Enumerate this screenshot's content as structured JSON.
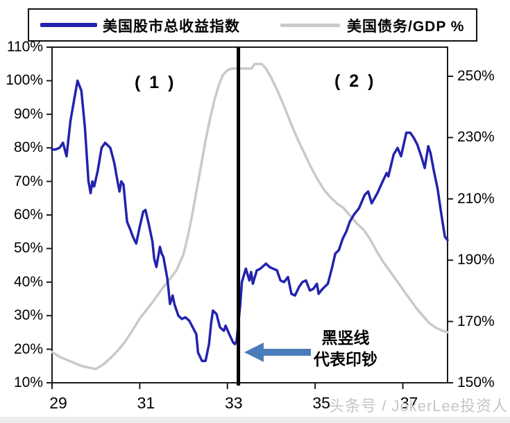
{
  "legend": {
    "series1": "美国股市总收益指数",
    "series2": "美国债务/GDP %"
  },
  "annotations": {
    "phase1": "( 1 )",
    "phase2": "( 2 )",
    "arrow_note_line1": "黑竖线",
    "arrow_note_line2": "代表印钞"
  },
  "watermark": "头条号 / JokerLee投资人",
  "colors": {
    "stocks_line": "#2322ad",
    "debt_line": "#c9c9c9",
    "event_line": "#000000",
    "arrow": "#4a7cba",
    "watermark_text": "#c6c6c6",
    "axis": "#1a1a1a"
  },
  "chart_data": {
    "type": "line",
    "title": "",
    "x_ticks": [
      "29",
      "31",
      "33",
      "35",
      "37"
    ],
    "x_tick_years": [
      29,
      31,
      33,
      35,
      37
    ],
    "x_range": [
      29,
      38.02
    ],
    "left_axis": {
      "tick_labels": [
        "110%",
        "100%",
        "90%",
        "80%",
        "70%",
        "60%",
        "50%",
        "40%",
        "30%",
        "20%",
        "10%"
      ],
      "tick_values": [
        110,
        100,
        90,
        80,
        70,
        60,
        50,
        40,
        30,
        20,
        10
      ],
      "range": [
        10,
        110
      ],
      "series_name": "美国股市总收益指数"
    },
    "right_axis": {
      "tick_labels": [
        "250%",
        "230%",
        "210%",
        "190%",
        "170%",
        "150%"
      ],
      "tick_values": [
        250,
        230,
        210,
        190,
        170,
        150
      ],
      "range": [
        150,
        259.5
      ],
      "series_name": "美国债务/GDP %"
    },
    "event_line_x": 33.25,
    "legend_position": "top",
    "grid": false,
    "series": [
      {
        "name": "美国债务/GDP %",
        "axis": "right",
        "points": [
          [
            29.0,
            160
          ],
          [
            29.17,
            158.5
          ],
          [
            29.33,
            157.5
          ],
          [
            29.5,
            156.5
          ],
          [
            29.67,
            155.5
          ],
          [
            29.83,
            155
          ],
          [
            30.0,
            154.5
          ],
          [
            30.17,
            156
          ],
          [
            30.33,
            158
          ],
          [
            30.5,
            160.5
          ],
          [
            30.67,
            163.5
          ],
          [
            30.83,
            167
          ],
          [
            31.0,
            171
          ],
          [
            31.17,
            174
          ],
          [
            31.33,
            177
          ],
          [
            31.5,
            180.5
          ],
          [
            31.67,
            183.5
          ],
          [
            31.83,
            186.5
          ],
          [
            32.0,
            192
          ],
          [
            32.1,
            198
          ],
          [
            32.2,
            205
          ],
          [
            32.3,
            213
          ],
          [
            32.4,
            221
          ],
          [
            32.5,
            229
          ],
          [
            32.6,
            236
          ],
          [
            32.7,
            242
          ],
          [
            32.8,
            247
          ],
          [
            32.9,
            250.5
          ],
          [
            33.0,
            252
          ],
          [
            33.1,
            252.5
          ],
          [
            33.3,
            252.5
          ],
          [
            33.55,
            252.5
          ],
          [
            33.62,
            254
          ],
          [
            33.78,
            254
          ],
          [
            33.88,
            252.5
          ],
          [
            34.0,
            249.5
          ],
          [
            34.15,
            245
          ],
          [
            34.3,
            240
          ],
          [
            34.45,
            234.5
          ],
          [
            34.6,
            229.5
          ],
          [
            34.75,
            225
          ],
          [
            34.9,
            220.5
          ],
          [
            35.05,
            216.5
          ],
          [
            35.2,
            213
          ],
          [
            35.35,
            210.5
          ],
          [
            35.5,
            208.5
          ],
          [
            35.65,
            207
          ],
          [
            35.8,
            204.5
          ],
          [
            35.95,
            202
          ],
          [
            36.1,
            200
          ],
          [
            36.25,
            197
          ],
          [
            36.4,
            193
          ],
          [
            36.55,
            189.5
          ],
          [
            36.7,
            186.5
          ],
          [
            36.85,
            183.5
          ],
          [
            37.0,
            180.5
          ],
          [
            37.15,
            177.5
          ],
          [
            37.3,
            174.5
          ],
          [
            37.45,
            172
          ],
          [
            37.6,
            169.5
          ],
          [
            37.75,
            168
          ],
          [
            37.9,
            167
          ],
          [
            38.02,
            166.5
          ]
        ]
      },
      {
        "name": "美国股市总收益指数",
        "axis": "left",
        "points": [
          [
            29.0,
            79.5
          ],
          [
            29.08,
            79.5
          ],
          [
            29.17,
            80
          ],
          [
            29.25,
            81.5
          ],
          [
            29.33,
            77.5
          ],
          [
            29.42,
            88
          ],
          [
            29.5,
            94
          ],
          [
            29.58,
            100
          ],
          [
            29.67,
            97
          ],
          [
            29.75,
            86
          ],
          [
            29.83,
            70
          ],
          [
            29.88,
            66.5
          ],
          [
            29.92,
            70
          ],
          [
            29.96,
            68.5
          ],
          [
            30.04,
            73
          ],
          [
            30.13,
            80
          ],
          [
            30.21,
            81.5
          ],
          [
            30.29,
            80.5
          ],
          [
            30.33,
            80
          ],
          [
            30.42,
            75.5
          ],
          [
            30.5,
            69.5
          ],
          [
            30.54,
            67
          ],
          [
            30.58,
            70
          ],
          [
            30.63,
            69
          ],
          [
            30.71,
            58
          ],
          [
            30.79,
            55.5
          ],
          [
            30.83,
            54
          ],
          [
            30.88,
            52.5
          ],
          [
            30.92,
            51.5
          ],
          [
            31.0,
            56.5
          ],
          [
            31.08,
            61
          ],
          [
            31.13,
            61.5
          ],
          [
            31.21,
            57
          ],
          [
            31.29,
            52
          ],
          [
            31.33,
            47
          ],
          [
            31.38,
            44.5
          ],
          [
            31.46,
            50.5
          ],
          [
            31.5,
            48.5
          ],
          [
            31.54,
            47.5
          ],
          [
            31.63,
            41
          ],
          [
            31.69,
            33.5
          ],
          [
            31.75,
            36
          ],
          [
            31.79,
            33.5
          ],
          [
            31.88,
            30
          ],
          [
            31.96,
            29
          ],
          [
            32.04,
            29.5
          ],
          [
            32.13,
            28.5
          ],
          [
            32.21,
            26.5
          ],
          [
            32.29,
            24.5
          ],
          [
            32.33,
            19
          ],
          [
            32.42,
            16.5
          ],
          [
            32.5,
            16.5
          ],
          [
            32.58,
            21.5
          ],
          [
            32.63,
            28
          ],
          [
            32.67,
            31.5
          ],
          [
            32.75,
            30.5
          ],
          [
            32.83,
            26.5
          ],
          [
            32.92,
            25.5
          ],
          [
            32.96,
            27
          ],
          [
            33.04,
            24.5
          ],
          [
            33.13,
            22
          ],
          [
            33.17,
            21.5
          ],
          [
            33.21,
            22.5
          ],
          [
            33.29,
            33
          ],
          [
            33.33,
            40
          ],
          [
            33.42,
            44
          ],
          [
            33.5,
            40.5
          ],
          [
            33.54,
            43
          ],
          [
            33.58,
            39.5
          ],
          [
            33.67,
            43.5
          ],
          [
            33.75,
            44
          ],
          [
            33.88,
            45.5
          ],
          [
            33.96,
            44.5
          ],
          [
            34.04,
            44
          ],
          [
            34.13,
            43.5
          ],
          [
            34.21,
            40.5
          ],
          [
            34.29,
            40
          ],
          [
            34.38,
            41.5
          ],
          [
            34.46,
            36.5
          ],
          [
            34.54,
            36
          ],
          [
            34.63,
            38.5
          ],
          [
            34.71,
            40
          ],
          [
            34.79,
            40.5
          ],
          [
            34.88,
            37.5
          ],
          [
            34.96,
            38
          ],
          [
            35.04,
            39.5
          ],
          [
            35.08,
            36.5
          ],
          [
            35.17,
            38
          ],
          [
            35.29,
            39.5
          ],
          [
            35.38,
            44
          ],
          [
            35.46,
            48.5
          ],
          [
            35.54,
            49.5
          ],
          [
            35.63,
            53
          ],
          [
            35.71,
            55
          ],
          [
            35.79,
            58
          ],
          [
            35.88,
            60
          ],
          [
            36.0,
            62
          ],
          [
            36.13,
            66
          ],
          [
            36.21,
            67
          ],
          [
            36.29,
            63.5
          ],
          [
            36.42,
            66.5
          ],
          [
            36.54,
            70
          ],
          [
            36.63,
            72.5
          ],
          [
            36.67,
            71.5
          ],
          [
            36.79,
            78
          ],
          [
            36.88,
            80
          ],
          [
            36.96,
            77.5
          ],
          [
            37.08,
            84.5
          ],
          [
            37.17,
            84.5
          ],
          [
            37.25,
            83
          ],
          [
            37.33,
            81
          ],
          [
            37.42,
            77.5
          ],
          [
            37.5,
            74
          ],
          [
            37.58,
            80.5
          ],
          [
            37.63,
            78.5
          ],
          [
            37.71,
            73
          ],
          [
            37.79,
            68
          ],
          [
            37.88,
            60
          ],
          [
            37.96,
            53.5
          ],
          [
            38.02,
            52.5
          ]
        ]
      }
    ]
  }
}
